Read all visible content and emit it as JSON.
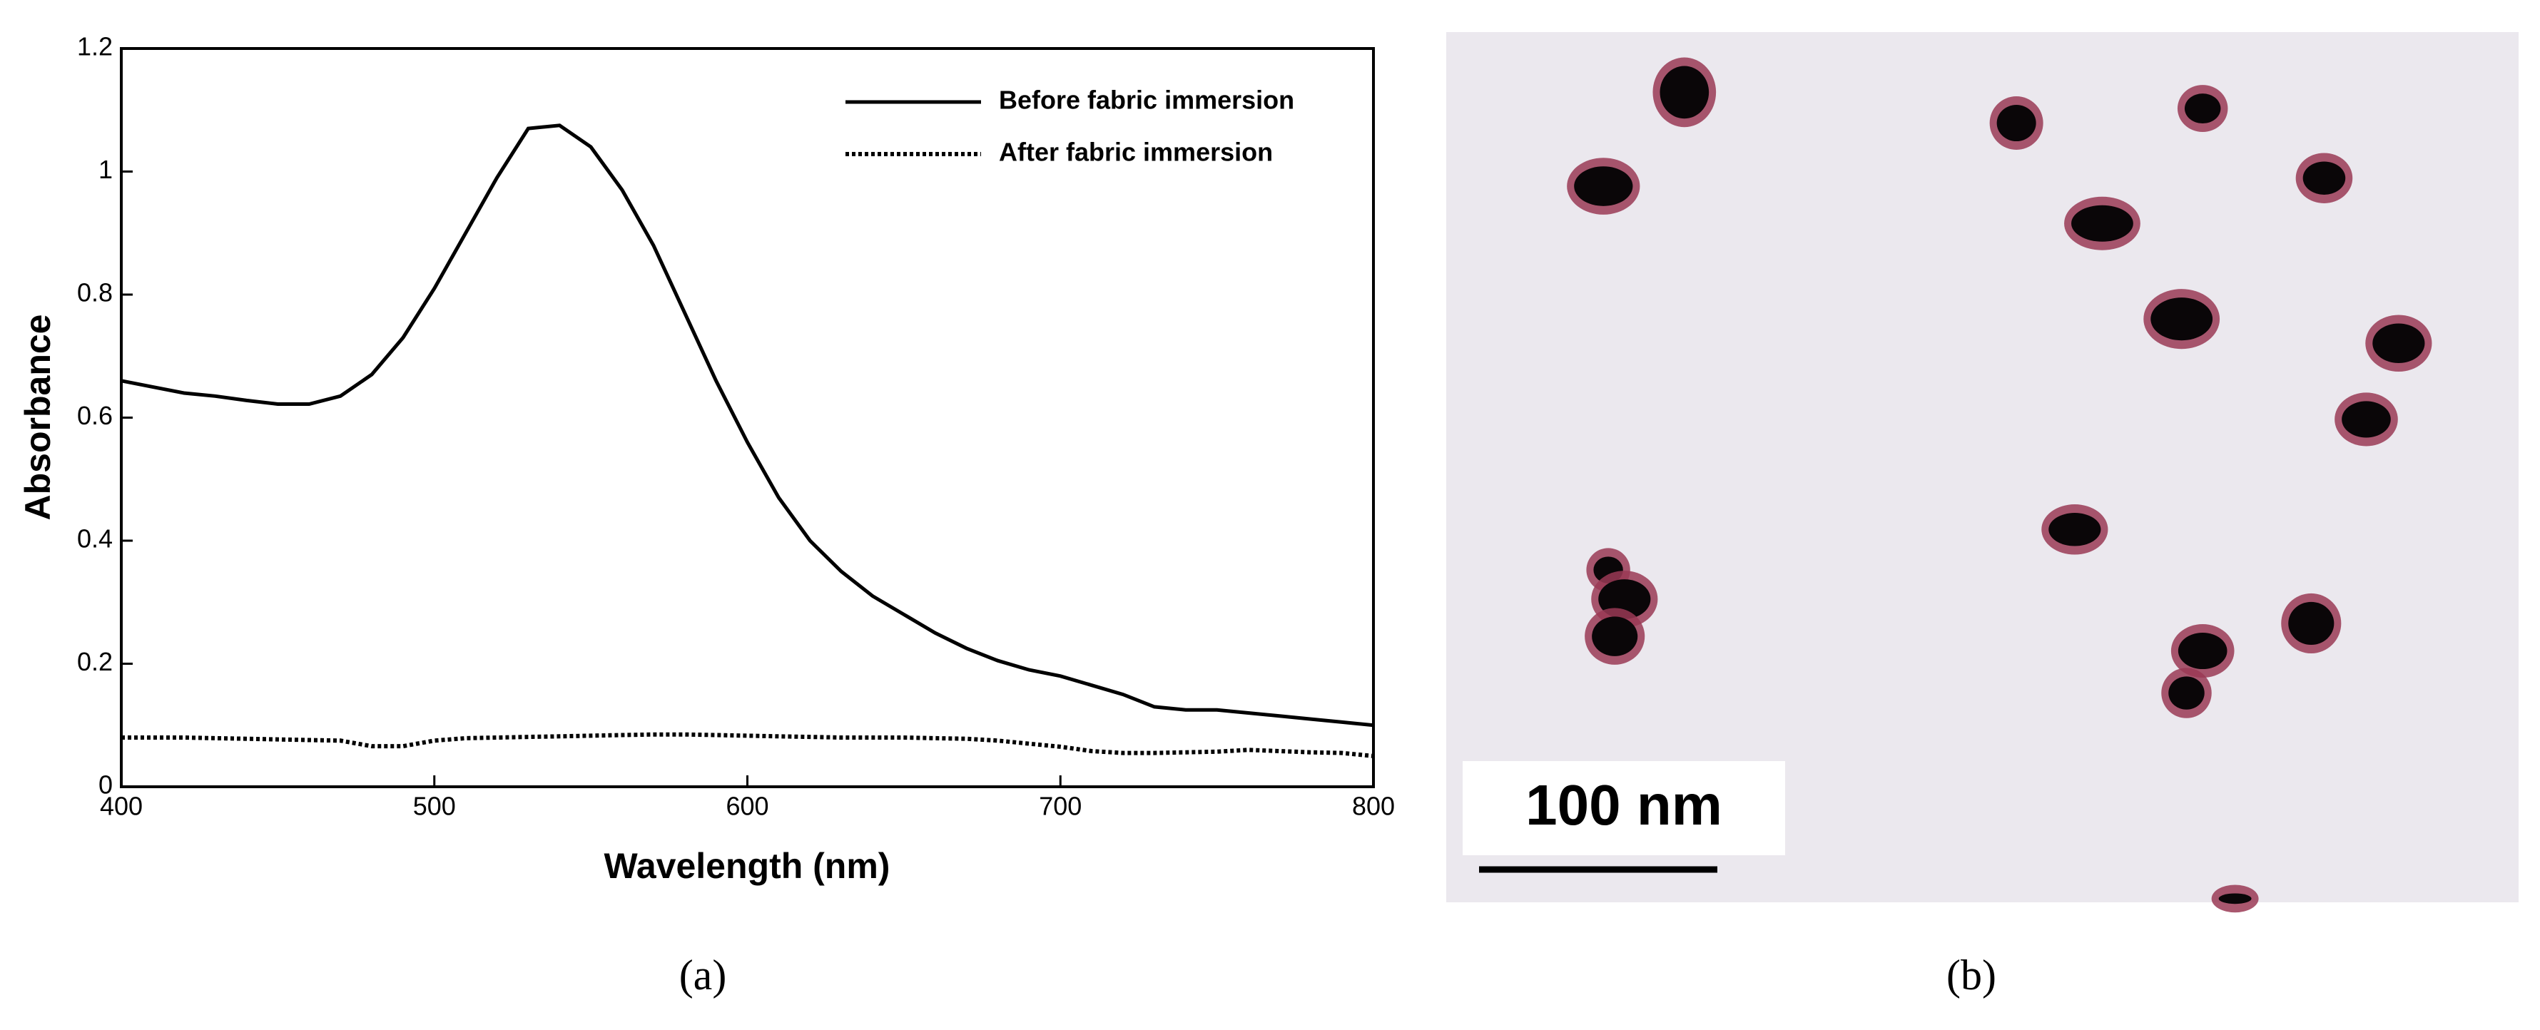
{
  "chart_data": {
    "type": "line",
    "xlabel": "Wavelength (nm)",
    "ylabel": "Absorbance",
    "x": [
      400,
      410,
      420,
      430,
      440,
      450,
      460,
      470,
      480,
      490,
      500,
      510,
      520,
      530,
      540,
      550,
      560,
      570,
      580,
      590,
      600,
      610,
      620,
      630,
      640,
      650,
      660,
      670,
      680,
      690,
      700,
      710,
      720,
      730,
      740,
      750,
      760,
      770,
      780,
      790,
      800
    ],
    "series": [
      {
        "name": "Before fabric immersion",
        "color": "#000000",
        "style": "solid",
        "values": [
          0.66,
          0.65,
          0.64,
          0.635,
          0.628,
          0.622,
          0.622,
          0.635,
          0.67,
          0.73,
          0.81,
          0.9,
          0.99,
          1.07,
          1.075,
          1.04,
          0.97,
          0.88,
          0.77,
          0.66,
          0.56,
          0.47,
          0.4,
          0.35,
          0.31,
          0.28,
          0.25,
          0.225,
          0.205,
          0.19,
          0.18,
          0.165,
          0.15,
          0.13,
          0.125,
          0.125,
          0.12,
          0.115,
          0.11,
          0.105,
          0.1
        ]
      },
      {
        "name": "After fabric immersion",
        "color": "#000000",
        "style": "dotted",
        "values": [
          0.08,
          0.08,
          0.08,
          0.079,
          0.078,
          0.077,
          0.076,
          0.075,
          0.066,
          0.066,
          0.075,
          0.079,
          0.08,
          0.081,
          0.082,
          0.083,
          0.084,
          0.085,
          0.085,
          0.084,
          0.083,
          0.082,
          0.081,
          0.08,
          0.08,
          0.08,
          0.079,
          0.078,
          0.075,
          0.07,
          0.065,
          0.058,
          0.055,
          0.055,
          0.056,
          0.057,
          0.06,
          0.058,
          0.056,
          0.055,
          0.05
        ]
      }
    ],
    "xlim": [
      400,
      800
    ],
    "xticks": [
      400,
      500,
      600,
      700,
      800
    ],
    "ylim": [
      0,
      1.2
    ],
    "yticks": [
      0,
      0.2,
      0.4,
      0.6,
      0.8,
      1,
      1.2
    ],
    "legend": "upper right",
    "grid": false
  },
  "panel_a_label": "(a)",
  "image_panel": {
    "scale_bar_label": "100 nm",
    "panel_label": "(b)"
  }
}
